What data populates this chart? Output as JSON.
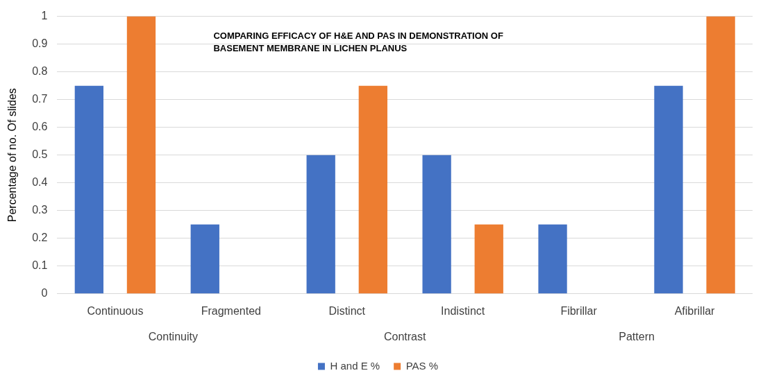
{
  "chart_data": {
    "type": "bar",
    "title": "COMPARING EFFICACY OF H&E AND PAS IN DEMONSTRATION OF BASEMENT MEMBRANE IN LICHEN PLANUS",
    "ylabel": "Percentage of no. Of slides",
    "categories": [
      "Continuous",
      "Fragmented",
      "Distinct",
      "Indistinct",
      "Fibrillar",
      "Afibrillar"
    ],
    "series": [
      {
        "name": "H and E %",
        "color": "#4472c4",
        "values": [
          0.75,
          0.25,
          0.5,
          0.5,
          0.25,
          0.75
        ]
      },
      {
        "name": "PAS %",
        "color": "#ed7d31",
        "values": [
          1,
          0,
          0.75,
          0.25,
          0,
          1
        ]
      }
    ],
    "annotations": [
      "Continuity",
      "Contrast",
      "Pattern"
    ],
    "ylim": [
      0,
      1
    ],
    "yticks": [
      0,
      0.1,
      0.2,
      0.3,
      0.4,
      0.5,
      0.6,
      0.7,
      0.8,
      0.9,
      1
    ],
    "grid": "y",
    "legend": "bottom"
  }
}
